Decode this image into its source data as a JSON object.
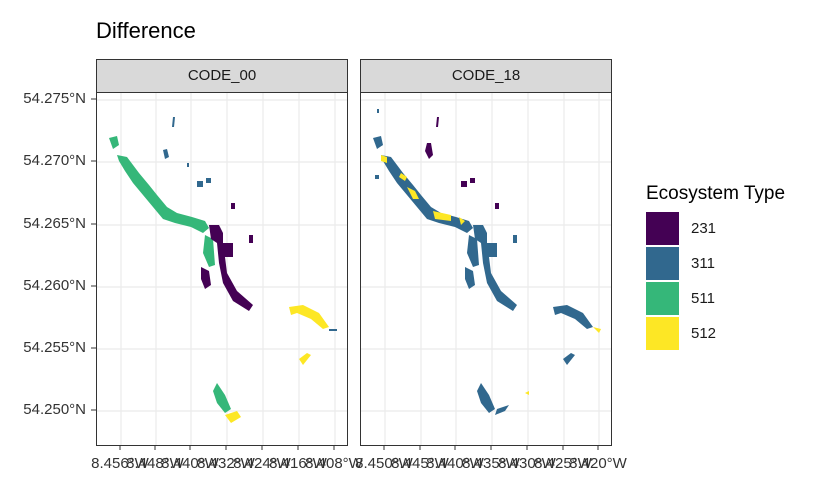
{
  "title": "Difference",
  "panels": [
    {
      "label": "CODE_00"
    },
    {
      "label": "CODE_18"
    }
  ],
  "y_ticks": [
    "54.275°N",
    "54.270°N",
    "54.265°N",
    "54.260°N",
    "54.255°N",
    "54.250°N"
  ],
  "x_ticks": [
    "8.456°W",
    "8.448°W",
    "8.440°W",
    "8.432°W",
    "8.424°W",
    "8.416°W",
    "8.408°W"
  ],
  "x_ticks_right": [
    "8.450°W",
    "8.445°W",
    "8.440°W",
    "8.435°W",
    "8.430°W",
    "8.425°W",
    "8.420°W"
  ],
  "legend": {
    "title": "Ecosystem Type",
    "items": [
      {
        "label": "231",
        "color": "#440154"
      },
      {
        "label": "311",
        "color": "#31688E"
      },
      {
        "label": "511",
        "color": "#35B779"
      },
      {
        "label": "512",
        "color": "#FDE725"
      }
    ]
  }
}
